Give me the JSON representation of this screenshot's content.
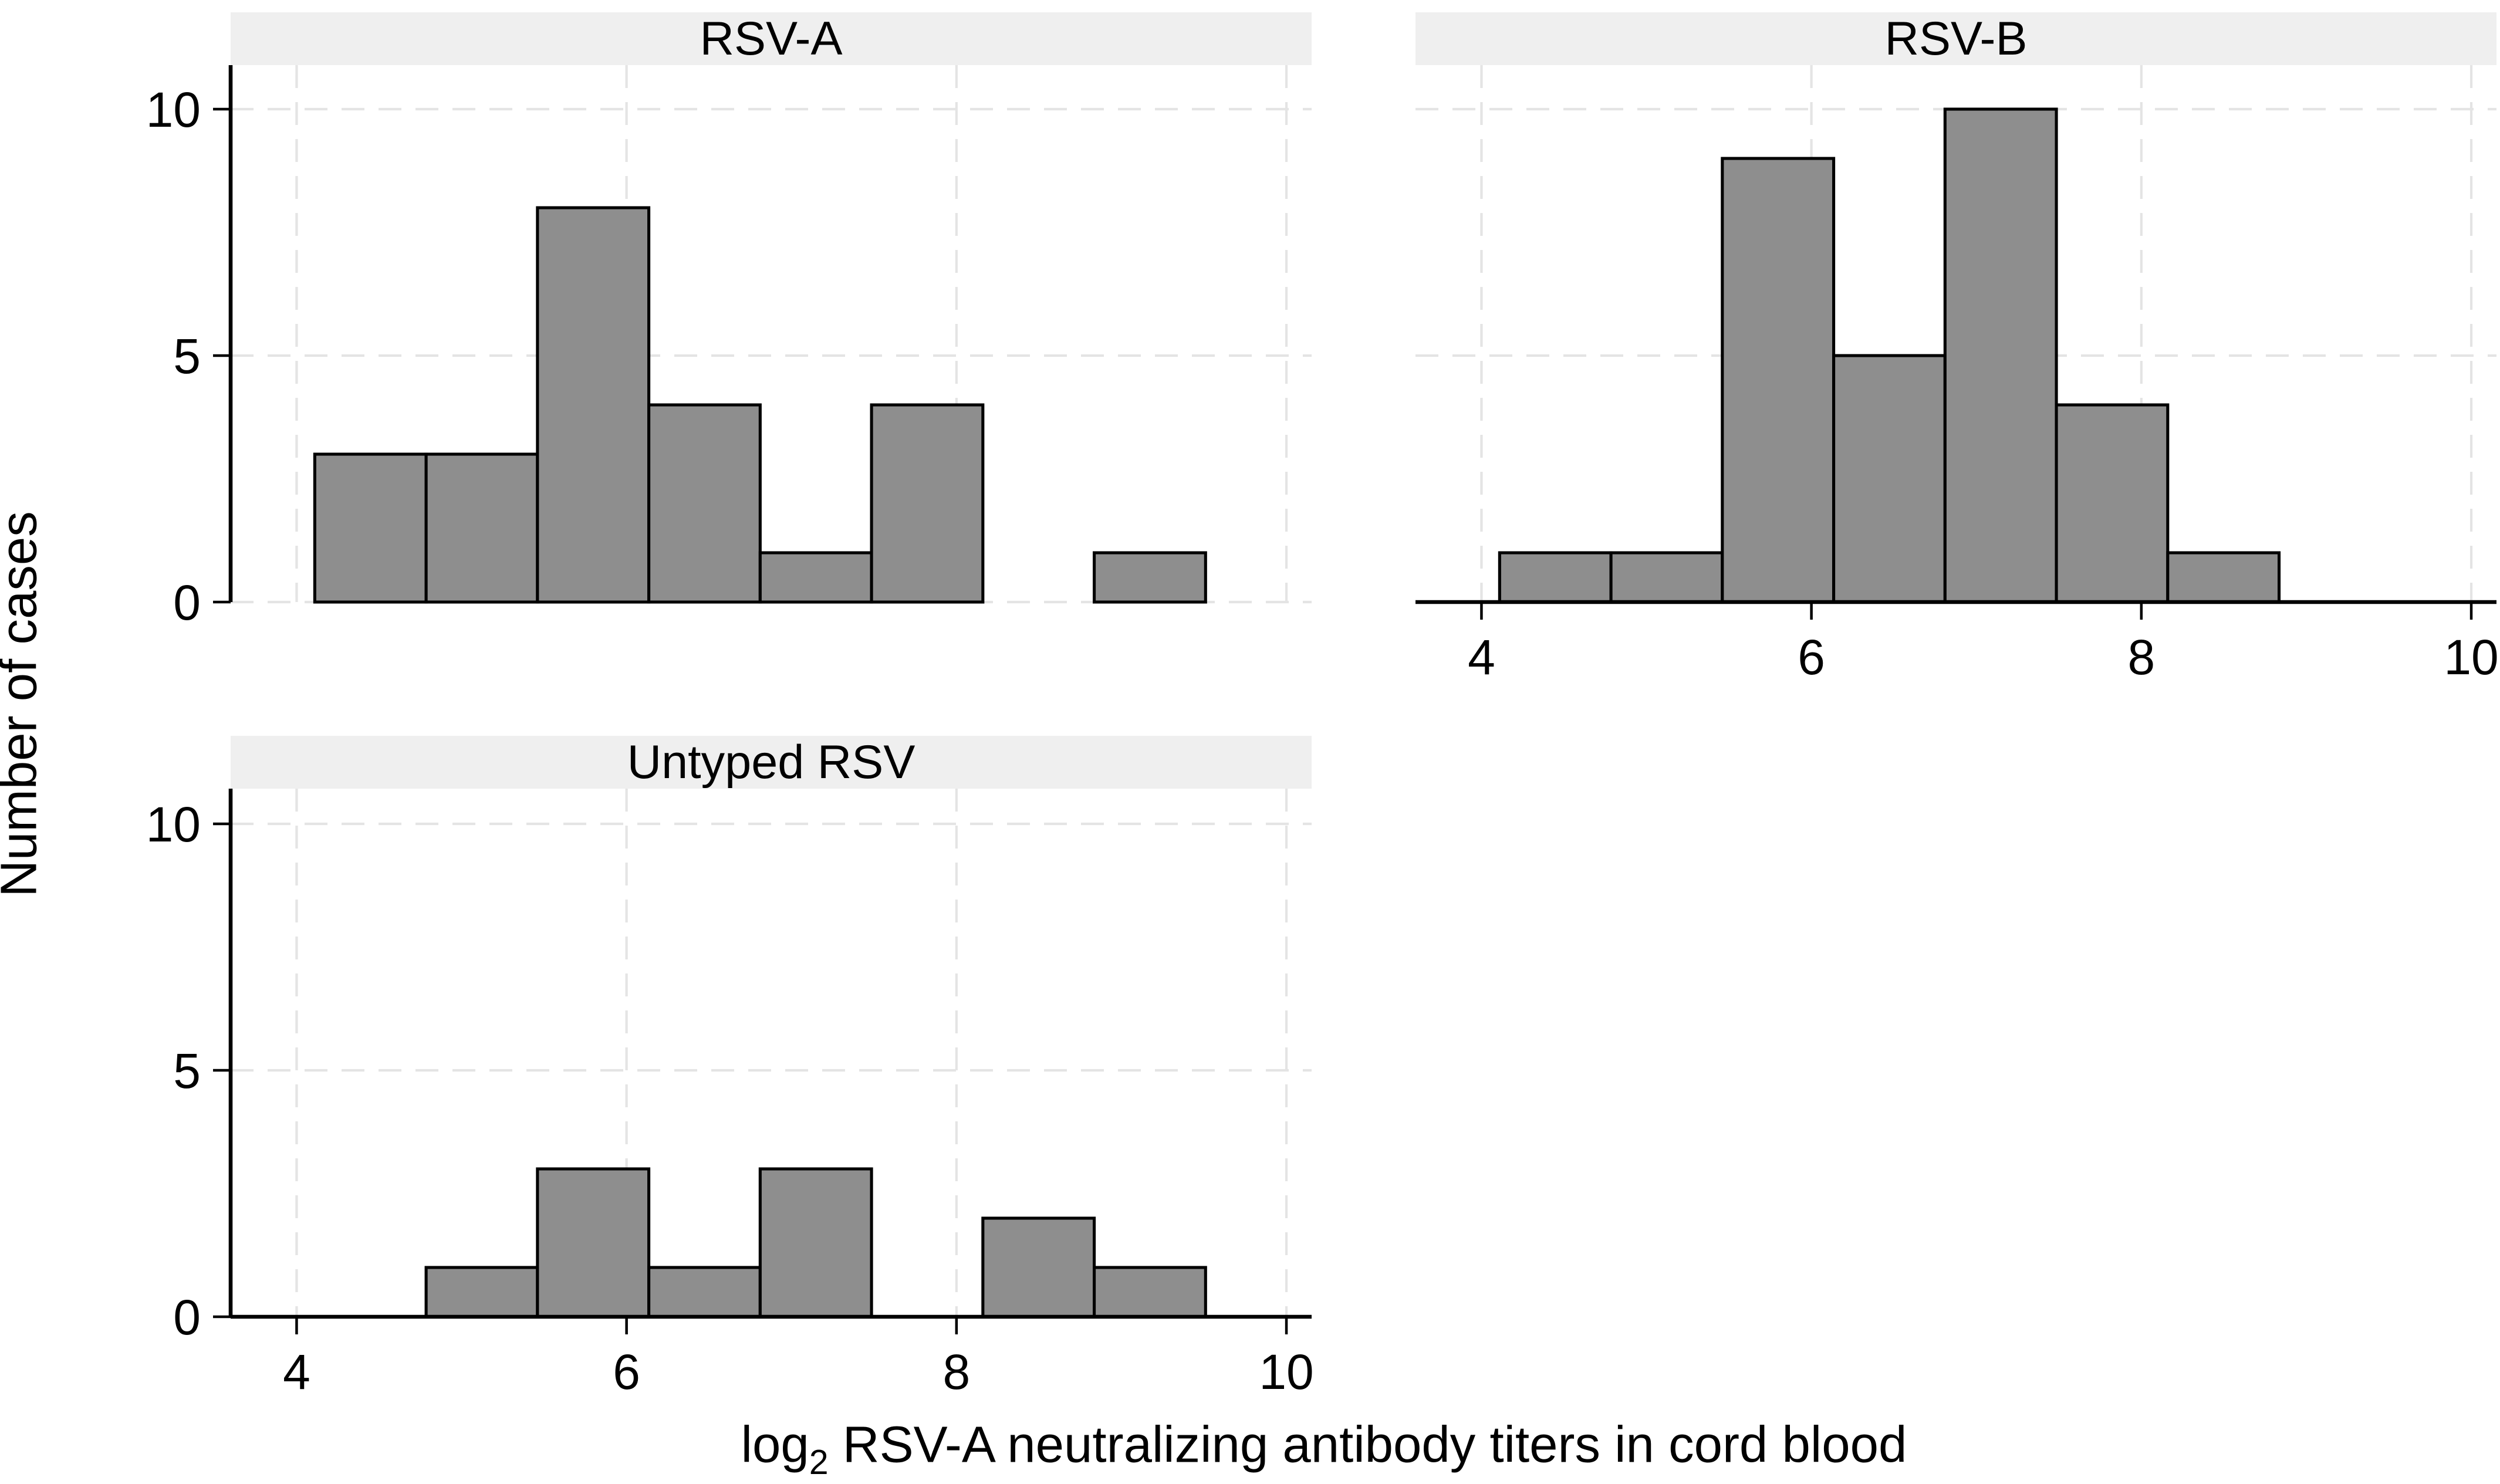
{
  "chart_data": {
    "type": "histogram",
    "title": "",
    "ylabel": "Number of cases",
    "xlabel": "log₂ RSV-A neutralizing antibody titers in cord blood",
    "xlabel_parts": {
      "prefix": "log",
      "sub": "2",
      "rest": " RSV-A neutralizing antibody titers in cord blood"
    },
    "x_ticks": [
      4,
      6,
      8,
      10
    ],
    "y_ticks": [
      0,
      5,
      10
    ],
    "xlim": [
      3.6,
      10.15
    ],
    "ylim": [
      0,
      10.86
    ],
    "bin_start": 4.11,
    "bin_width": 0.675,
    "grid": true,
    "grid_style": "dashed",
    "legend": "none",
    "panels": [
      {
        "title": "RSV-A",
        "row": 0,
        "col": 0,
        "x_axis": false,
        "y_axis": true,
        "counts": [
          3,
          3,
          8,
          4,
          1,
          4,
          0,
          1
        ]
      },
      {
        "title": "RSV-B",
        "row": 0,
        "col": 1,
        "x_axis": true,
        "y_axis": false,
        "counts": [
          1,
          1,
          9,
          5,
          10,
          4,
          1,
          0
        ]
      },
      {
        "title": "Untyped RSV",
        "row": 1,
        "col": 0,
        "x_axis": true,
        "y_axis": true,
        "counts": [
          0,
          1,
          3,
          1,
          3,
          0,
          2,
          1
        ]
      }
    ],
    "colors": {
      "bar_fill": "#8e8e8e",
      "bar_stroke": "#000000",
      "grid": "#e4e4e4",
      "strip_bg": "#efefef",
      "axis": "#000000",
      "text": "#000000",
      "background": "#ffffff"
    }
  }
}
